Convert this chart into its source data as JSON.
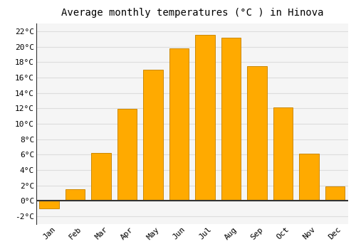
{
  "title": "Average monthly temperatures (°C ) in Hinova",
  "months": [
    "Jan",
    "Feb",
    "Mar",
    "Apr",
    "May",
    "Jun",
    "Jul",
    "Aug",
    "Sep",
    "Oct",
    "Nov",
    "Dec"
  ],
  "values": [
    -1.0,
    1.5,
    6.2,
    11.9,
    17.0,
    19.8,
    21.5,
    21.2,
    17.5,
    12.1,
    6.1,
    1.9
  ],
  "bar_color": "#FFAA00",
  "bar_edge_color": "#CC8800",
  "ylim": [
    -3,
    23
  ],
  "yticks": [
    -2,
    0,
    2,
    4,
    6,
    8,
    10,
    12,
    14,
    16,
    18,
    20,
    22
  ],
  "ytick_labels": [
    "-2°C",
    "0°C",
    "2°C",
    "4°C",
    "6°C",
    "8°C",
    "10°C",
    "12°C",
    "14°C",
    "16°C",
    "18°C",
    "20°C",
    "22°C"
  ],
  "background_color": "#ffffff",
  "plot_bg_color": "#f5f5f5",
  "grid_color": "#dddddd",
  "title_fontsize": 10,
  "tick_fontsize": 8,
  "font_family": "monospace",
  "bar_width": 0.75,
  "zero_line_color": "#333333",
  "left_spine_color": "#333333"
}
